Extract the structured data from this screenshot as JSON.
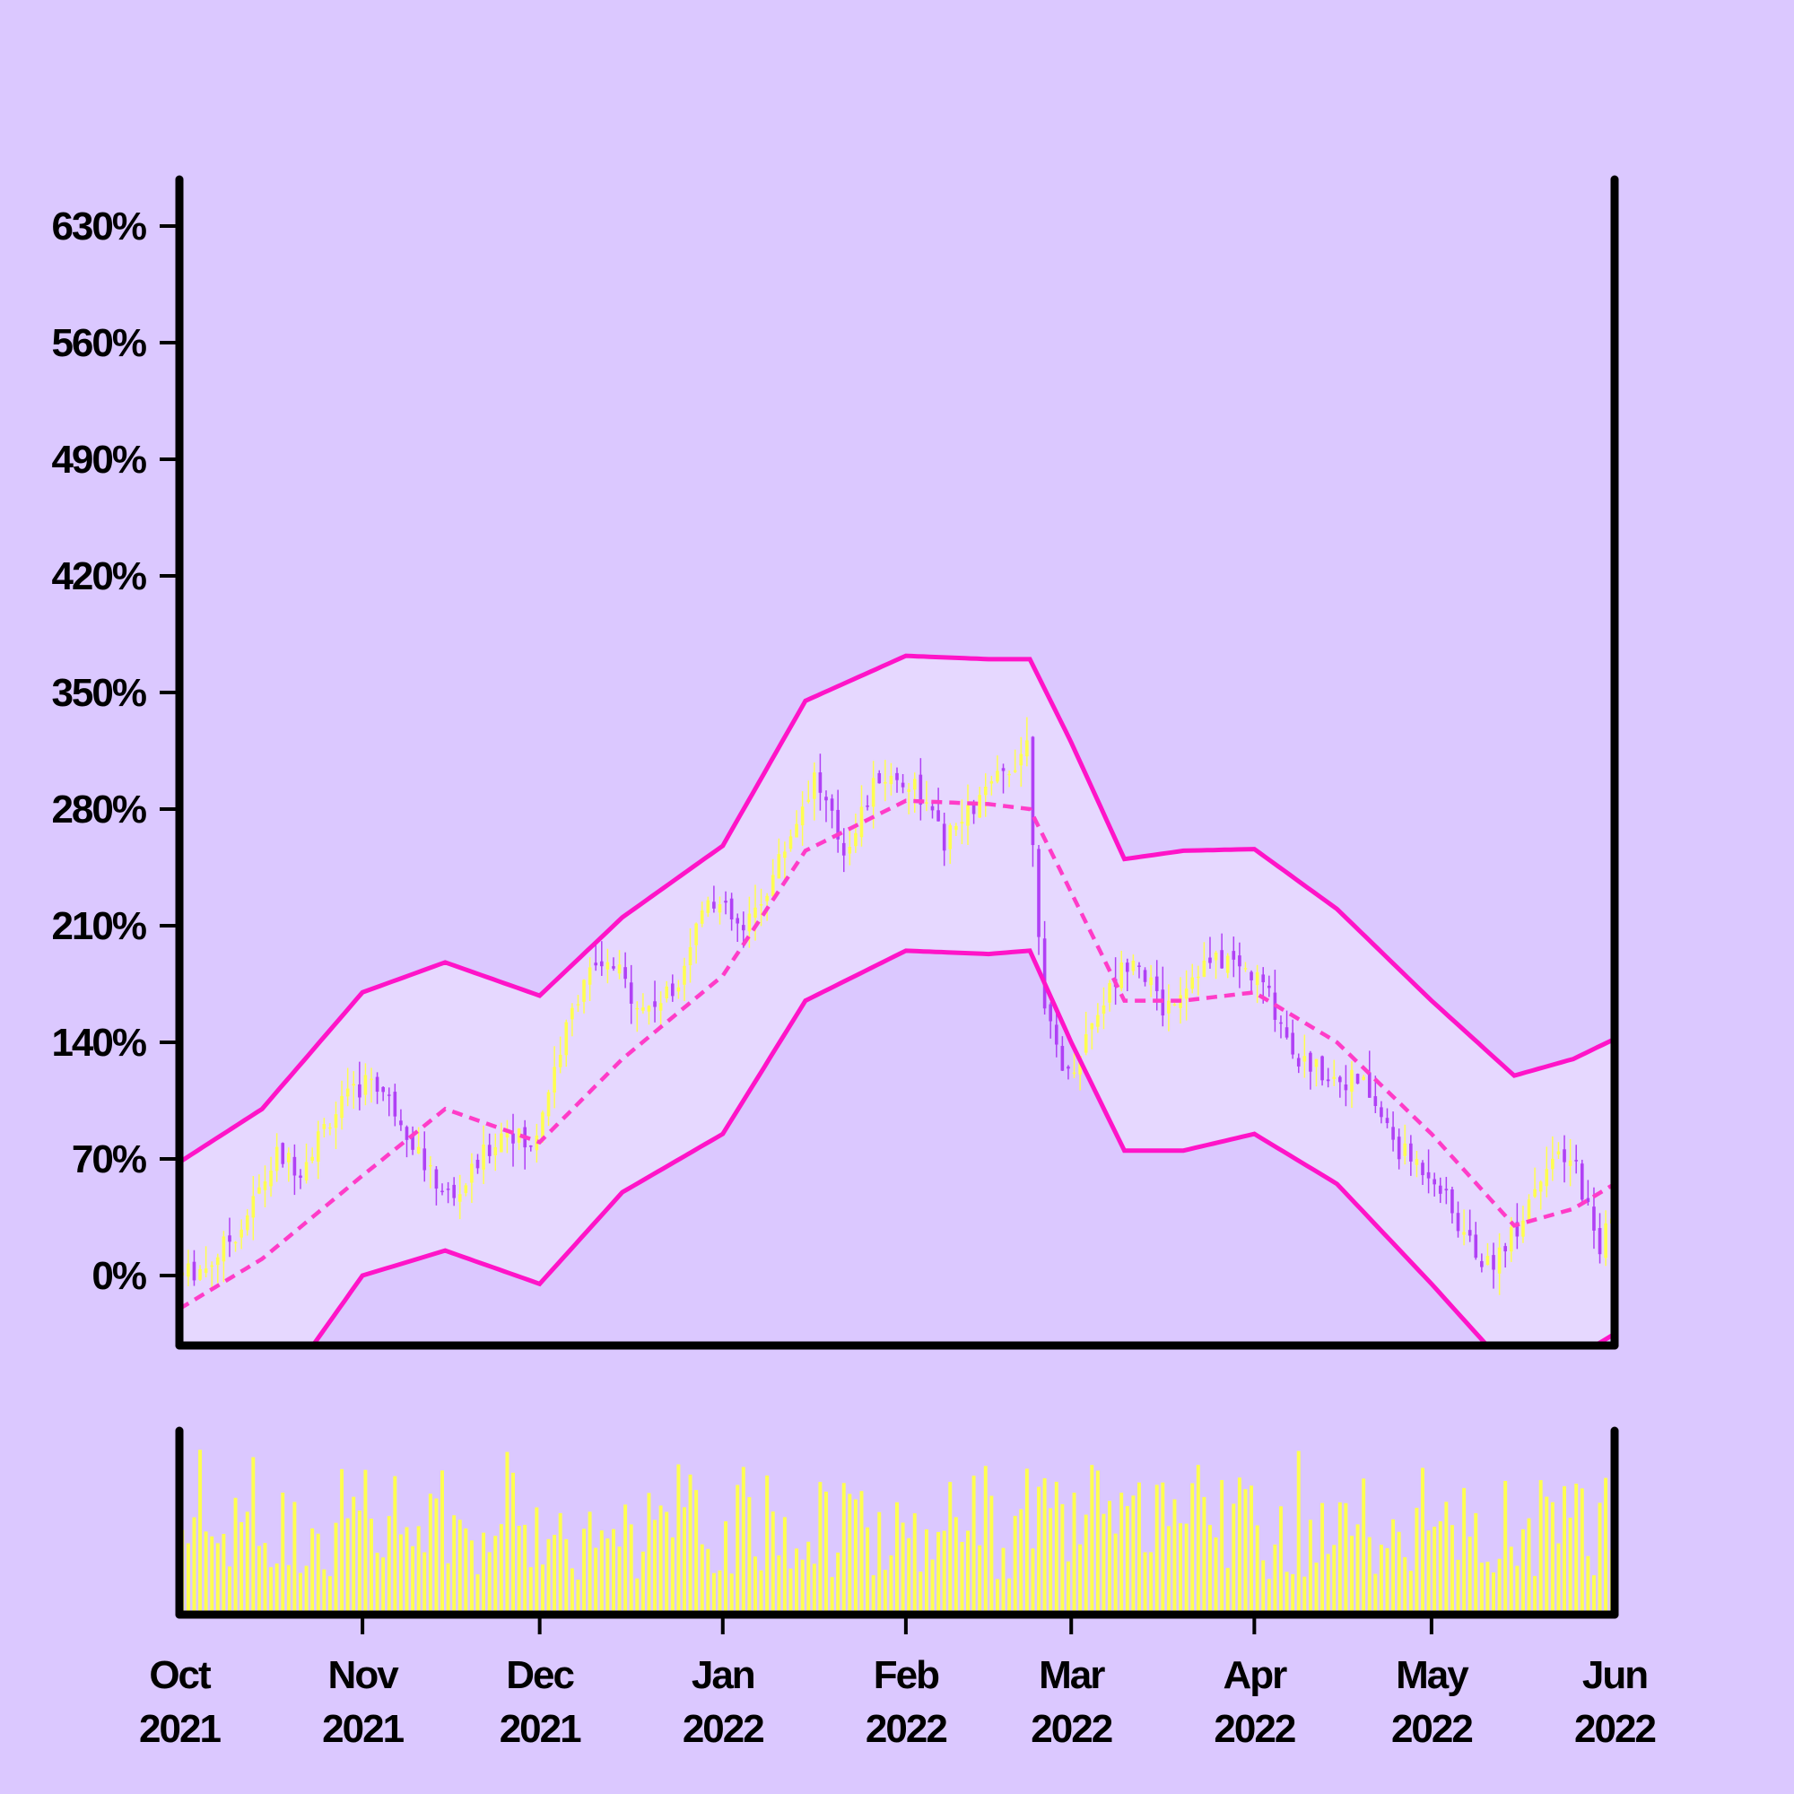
{
  "chart_data": {
    "type": "candlestick",
    "x_ticks": [
      {
        "date": "2021-10-01",
        "month": "Oct",
        "year": "2021"
      },
      {
        "date": "2021-11-01",
        "month": "Nov",
        "year": "2021"
      },
      {
        "date": "2021-12-01",
        "month": "Dec",
        "year": "2021"
      },
      {
        "date": "2022-01-01",
        "month": "Jan",
        "year": "2022"
      },
      {
        "date": "2022-02-01",
        "month": "Feb",
        "year": "2022"
      },
      {
        "date": "2022-03-01",
        "month": "Mar",
        "year": "2022"
      },
      {
        "date": "2022-04-01",
        "month": "Apr",
        "year": "2022"
      },
      {
        "date": "2022-05-01",
        "month": "May",
        "year": "2022"
      },
      {
        "date": "2022-06-01",
        "month": "Jun",
        "year": "2022"
      }
    ],
    "y_ticks": [
      {
        "value": 0,
        "label": "0%"
      },
      {
        "value": 70,
        "label": "70%"
      },
      {
        "value": 140,
        "label": "140%"
      },
      {
        "value": 210,
        "label": "210%"
      },
      {
        "value": 280,
        "label": "280%"
      },
      {
        "value": 350,
        "label": "350%"
      },
      {
        "value": 420,
        "label": "420%"
      },
      {
        "value": 490,
        "label": "490%"
      },
      {
        "value": 560,
        "label": "560%"
      },
      {
        "value": 630,
        "label": "630%"
      }
    ],
    "xlim": [
      "2021-10-01",
      "2022-06-01"
    ],
    "ylim": [
      -42,
      658
    ],
    "price_path": [
      [
        "2021-10-01",
        0
      ],
      [
        "2021-10-06",
        5
      ],
      [
        "2021-10-12",
        30
      ],
      [
        "2021-10-18",
        72
      ],
      [
        "2021-10-22",
        65
      ],
      [
        "2021-10-27",
        95
      ],
      [
        "2021-11-03",
        120
      ],
      [
        "2021-11-08",
        95
      ],
      [
        "2021-11-13",
        60
      ],
      [
        "2021-11-17",
        45
      ],
      [
        "2021-11-22",
        72
      ],
      [
        "2021-11-26",
        90
      ],
      [
        "2021-11-30",
        75
      ],
      [
        "2021-12-04",
        125
      ],
      [
        "2021-12-09",
        180
      ],
      [
        "2021-12-14",
        185
      ],
      [
        "2021-12-19",
        160
      ],
      [
        "2021-12-24",
        170
      ],
      [
        "2021-12-30",
        230
      ],
      [
        "2022-01-05",
        205
      ],
      [
        "2022-01-10",
        240
      ],
      [
        "2022-01-17",
        300
      ],
      [
        "2022-01-22",
        255
      ],
      [
        "2022-01-28",
        300
      ],
      [
        "2022-02-03",
        295
      ],
      [
        "2022-02-08",
        260
      ],
      [
        "2022-02-14",
        285
      ],
      [
        "2022-02-19",
        305
      ],
      [
        "2022-02-22",
        320
      ],
      [
        "2022-02-25",
        155
      ],
      [
        "2022-03-01",
        120
      ],
      [
        "2022-03-06",
        160
      ],
      [
        "2022-03-12",
        195
      ],
      [
        "2022-03-17",
        160
      ],
      [
        "2022-03-23",
        185
      ],
      [
        "2022-03-28",
        190
      ],
      [
        "2022-04-03",
        175
      ],
      [
        "2022-04-09",
        130
      ],
      [
        "2022-04-15",
        120
      ],
      [
        "2022-04-20",
        115
      ],
      [
        "2022-04-26",
        75
      ],
      [
        "2022-05-02",
        60
      ],
      [
        "2022-05-06",
        30
      ],
      [
        "2022-05-11",
        5
      ],
      [
        "2022-05-16",
        30
      ],
      [
        "2022-05-21",
        70
      ],
      [
        "2022-05-26",
        65
      ],
      [
        "2022-05-30",
        15
      ],
      [
        "2022-06-01",
        40
      ]
    ],
    "moving_average": [
      [
        "2021-10-01",
        -20
      ],
      [
        "2021-10-15",
        10
      ],
      [
        "2021-11-01",
        60
      ],
      [
        "2021-11-15",
        100
      ],
      [
        "2021-12-01",
        80
      ],
      [
        "2021-12-15",
        130
      ],
      [
        "2022-01-01",
        180
      ],
      [
        "2022-01-15",
        255
      ],
      [
        "2022-02-01",
        285
      ],
      [
        "2022-02-15",
        283
      ],
      [
        "2022-02-22",
        280
      ],
      [
        "2022-03-01",
        230
      ],
      [
        "2022-03-10",
        165
      ],
      [
        "2022-03-20",
        165
      ],
      [
        "2022-04-01",
        170
      ],
      [
        "2022-04-15",
        140
      ],
      [
        "2022-05-01",
        85
      ],
      [
        "2022-05-15",
        30
      ],
      [
        "2022-05-25",
        40
      ],
      [
        "2022-06-01",
        55
      ]
    ],
    "band_upper": [
      [
        "2021-10-01",
        68
      ],
      [
        "2021-10-15",
        100
      ],
      [
        "2021-11-01",
        170
      ],
      [
        "2021-11-15",
        188
      ],
      [
        "2021-12-01",
        168
      ],
      [
        "2021-12-15",
        215
      ],
      [
        "2022-01-01",
        258
      ],
      [
        "2022-01-15",
        345
      ],
      [
        "2022-02-01",
        372
      ],
      [
        "2022-02-15",
        370
      ],
      [
        "2022-02-22",
        370
      ],
      [
        "2022-03-01",
        320
      ],
      [
        "2022-03-10",
        250
      ],
      [
        "2022-03-20",
        255
      ],
      [
        "2022-04-01",
        256
      ],
      [
        "2022-04-15",
        220
      ],
      [
        "2022-05-01",
        165
      ],
      [
        "2022-05-15",
        120
      ],
      [
        "2022-05-25",
        130
      ],
      [
        "2022-06-01",
        142
      ]
    ],
    "band_lower": [
      [
        "2021-10-01",
        -110
      ],
      [
        "2021-10-15",
        -85
      ],
      [
        "2021-11-01",
        0
      ],
      [
        "2021-11-15",
        15
      ],
      [
        "2021-12-01",
        -5
      ],
      [
        "2021-12-15",
        50
      ],
      [
        "2022-01-01",
        85
      ],
      [
        "2022-01-15",
        165
      ],
      [
        "2022-02-01",
        195
      ],
      [
        "2022-02-15",
        193
      ],
      [
        "2022-02-22",
        195
      ],
      [
        "2022-03-01",
        140
      ],
      [
        "2022-03-10",
        75
      ],
      [
        "2022-03-20",
        75
      ],
      [
        "2022-04-01",
        85
      ],
      [
        "2022-04-15",
        55
      ],
      [
        "2022-05-01",
        -5
      ],
      [
        "2022-05-15",
        -60
      ],
      [
        "2022-05-25",
        -50
      ],
      [
        "2022-06-01",
        -35
      ]
    ],
    "volume_range": [
      0,
      100
    ],
    "colors": {
      "background": "#dbc8ff",
      "band_fill": "#e6d8ff",
      "band_line": "#ff14c8",
      "moving_average": "#ff3cc8",
      "up": "#ffff50",
      "down": "#b040f5",
      "volume": "#ffff50",
      "axis": "#000000"
    }
  }
}
